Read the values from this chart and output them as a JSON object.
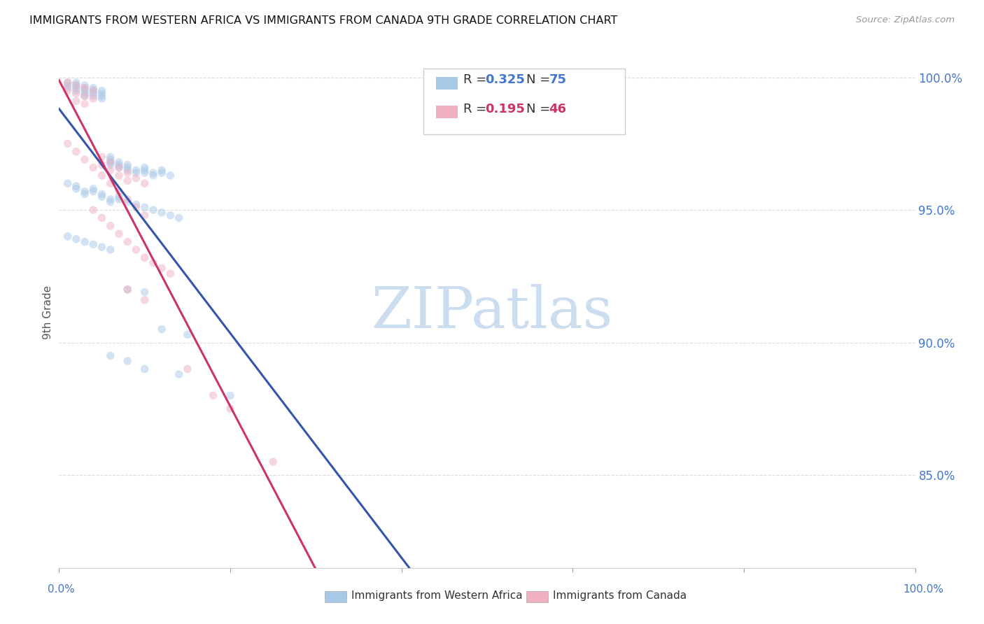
{
  "title": "IMMIGRANTS FROM WESTERN AFRICA VS IMMIGRANTS FROM CANADA 9TH GRADE CORRELATION CHART",
  "source": "Source: ZipAtlas.com",
  "ylabel": "9th Grade",
  "series1_name": "Immigrants from Western Africa",
  "series1_color": "#a8c8e8",
  "series1_line_color": "#3355aa",
  "series1_R": 0.325,
  "series1_N": 75,
  "series1_x": [
    0.01,
    0.01,
    0.01,
    0.02,
    0.02,
    0.02,
    0.02,
    0.03,
    0.03,
    0.03,
    0.03,
    0.03,
    0.04,
    0.04,
    0.04,
    0.04,
    0.05,
    0.05,
    0.05,
    0.05,
    0.06,
    0.06,
    0.06,
    0.06,
    0.07,
    0.07,
    0.07,
    0.08,
    0.08,
    0.08,
    0.09,
    0.09,
    0.1,
    0.1,
    0.1,
    0.11,
    0.11,
    0.12,
    0.12,
    0.13,
    0.01,
    0.02,
    0.02,
    0.03,
    0.03,
    0.04,
    0.04,
    0.05,
    0.05,
    0.06,
    0.06,
    0.07,
    0.07,
    0.08,
    0.09,
    0.1,
    0.11,
    0.12,
    0.13,
    0.14,
    0.01,
    0.02,
    0.03,
    0.04,
    0.05,
    0.06,
    0.08,
    0.1,
    0.12,
    0.15,
    0.06,
    0.08,
    0.1,
    0.14,
    0.2
  ],
  "series1_y": [
    0.998,
    0.997,
    0.996,
    0.998,
    0.997,
    0.996,
    0.995,
    0.997,
    0.996,
    0.995,
    0.994,
    0.993,
    0.996,
    0.995,
    0.994,
    0.993,
    0.995,
    0.994,
    0.993,
    0.992,
    0.97,
    0.969,
    0.968,
    0.967,
    0.968,
    0.967,
    0.966,
    0.967,
    0.966,
    0.965,
    0.965,
    0.964,
    0.966,
    0.965,
    0.964,
    0.963,
    0.964,
    0.965,
    0.964,
    0.963,
    0.96,
    0.959,
    0.958,
    0.957,
    0.956,
    0.958,
    0.957,
    0.956,
    0.955,
    0.954,
    0.953,
    0.955,
    0.954,
    0.953,
    0.952,
    0.951,
    0.95,
    0.949,
    0.948,
    0.947,
    0.94,
    0.939,
    0.938,
    0.937,
    0.936,
    0.935,
    0.92,
    0.919,
    0.905,
    0.903,
    0.895,
    0.893,
    0.89,
    0.888,
    0.88
  ],
  "series2_name": "Immigrants from Canada",
  "series2_color": "#f0b0c0",
  "series2_line_color": "#cc3366",
  "series2_R": 0.195,
  "series2_N": 46,
  "series2_x": [
    0.01,
    0.01,
    0.02,
    0.02,
    0.02,
    0.03,
    0.03,
    0.03,
    0.04,
    0.04,
    0.05,
    0.05,
    0.06,
    0.06,
    0.07,
    0.07,
    0.08,
    0.08,
    0.09,
    0.1,
    0.01,
    0.02,
    0.03,
    0.04,
    0.05,
    0.06,
    0.07,
    0.08,
    0.09,
    0.1,
    0.04,
    0.05,
    0.06,
    0.07,
    0.08,
    0.09,
    0.1,
    0.11,
    0.12,
    0.13,
    0.08,
    0.1,
    0.15,
    0.18,
    0.2,
    0.25
  ],
  "series2_y": [
    0.998,
    0.995,
    0.997,
    0.994,
    0.991,
    0.996,
    0.993,
    0.99,
    0.995,
    0.992,
    0.97,
    0.967,
    0.968,
    0.965,
    0.966,
    0.963,
    0.964,
    0.961,
    0.962,
    0.96,
    0.975,
    0.972,
    0.969,
    0.966,
    0.963,
    0.96,
    0.957,
    0.954,
    0.951,
    0.948,
    0.95,
    0.947,
    0.944,
    0.941,
    0.938,
    0.935,
    0.932,
    0.93,
    0.928,
    0.926,
    0.92,
    0.916,
    0.89,
    0.88,
    0.875,
    0.855
  ],
  "xmin": 0.0,
  "xmax": 1.0,
  "ymin": 0.815,
  "ymax": 1.008,
  "yticks_vals": [
    0.85,
    0.9,
    0.95,
    1.0
  ],
  "yticks_labels": [
    "85.0%",
    "90.0%",
    "95.0%",
    "100.0%"
  ],
  "xticks_vals": [
    0.0,
    0.2,
    0.4,
    0.6,
    0.8,
    1.0
  ],
  "background_color": "#ffffff",
  "grid_color": "#dddddd",
  "title_fontsize": 11.5,
  "marker_size": 70,
  "marker_alpha": 0.5,
  "watermark_text": "ZIPatlas",
  "watermark_color": "#ccddf0",
  "legend_R1_val": "0.325",
  "legend_N1_val": "75",
  "legend_R2_val": "0.195",
  "legend_N2_val": "46",
  "legend_color1": "#4477cc",
  "legend_color2": "#cc3366"
}
